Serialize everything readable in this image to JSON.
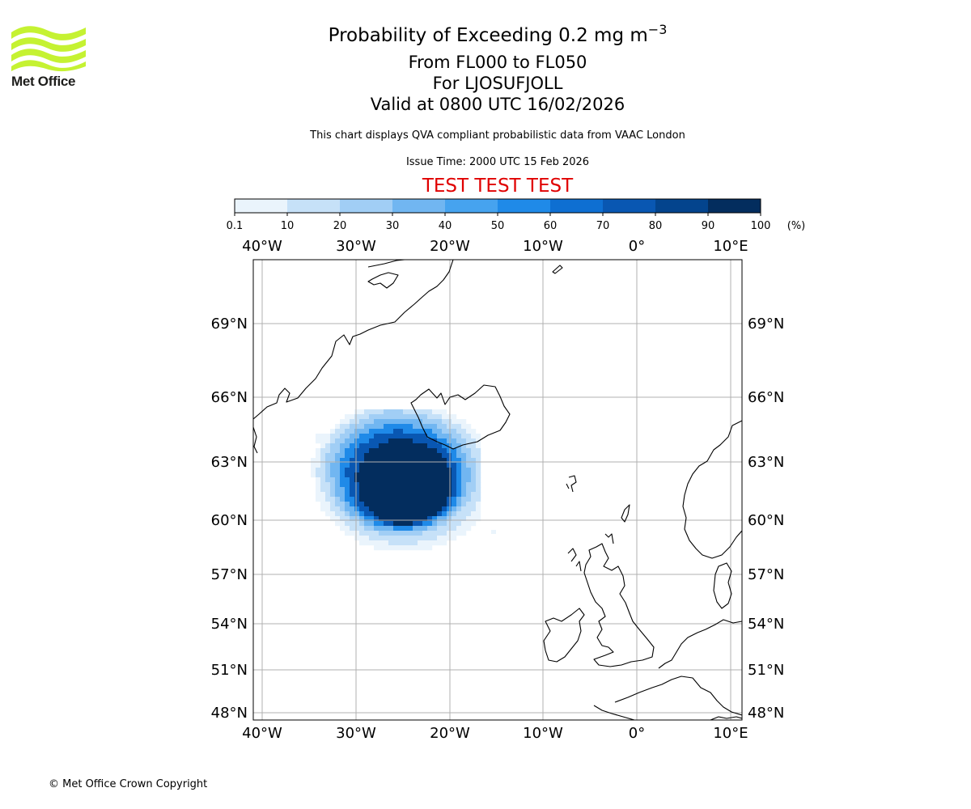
{
  "header": {
    "title_main": "Probability of Exceeding 0.2 mg m",
    "title_sup": "−3",
    "line2": "From FL000 to FL050",
    "line3": "For LJOSUFJOLL",
    "line4": "Valid at 0800 UTC 16/02/2026",
    "subtitle": "This chart displays QVA compliant probabilistic data from VAAC London",
    "issue_time": "Issue Time: 2000 UTC 15 Feb 2026",
    "test_banner": "TEST TEST TEST"
  },
  "colors": {
    "test_banner": "#e00000",
    "bins": [
      "#eaf4fc",
      "#c6e1f8",
      "#a1cef5",
      "#71b6f1",
      "#46a3ef",
      "#1f8ae8",
      "#0e6fd2",
      "#0957b2",
      "#03448d",
      "#032d5e"
    ]
  },
  "colorbar": {
    "ticks": [
      "0.1",
      "10",
      "20",
      "30",
      "40",
      "50",
      "60",
      "70",
      "80",
      "90",
      "100"
    ],
    "units": "(%)"
  },
  "map": {
    "lon_labels": [
      "40°W",
      "30°W",
      "20°W",
      "10°W",
      "0°",
      "10°E"
    ],
    "lat_labels": [
      "69°N",
      "66°N",
      "63°N",
      "60°N",
      "57°N",
      "54°N",
      "51°N",
      "48°N"
    ]
  },
  "logo": {
    "text": "Met Office"
  },
  "footer": {
    "copyright": "© Met Office Crown Copyright"
  }
}
